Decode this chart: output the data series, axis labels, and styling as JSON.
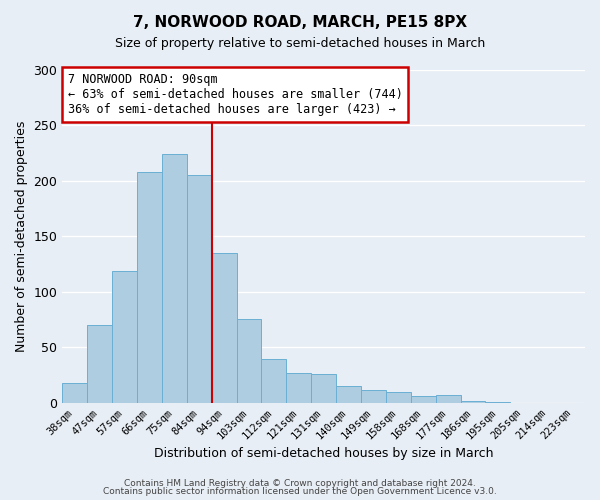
{
  "title": "7, NORWOOD ROAD, MARCH, PE15 8PX",
  "subtitle": "Size of property relative to semi-detached houses in March",
  "xlabel": "Distribution of semi-detached houses by size in March",
  "ylabel": "Number of semi-detached properties",
  "bar_labels": [
    "38sqm",
    "47sqm",
    "57sqm",
    "66sqm",
    "75sqm",
    "84sqm",
    "94sqm",
    "103sqm",
    "112sqm",
    "121sqm",
    "131sqm",
    "140sqm",
    "149sqm",
    "158sqm",
    "168sqm",
    "177sqm",
    "186sqm",
    "195sqm",
    "205sqm",
    "214sqm",
    "223sqm"
  ],
  "bar_values": [
    18,
    70,
    119,
    208,
    224,
    205,
    135,
    76,
    40,
    27,
    26,
    15,
    12,
    10,
    6,
    7,
    2,
    1,
    0,
    0,
    0
  ],
  "bar_color": "#aecde1",
  "bar_edge_color": "#6aafd4",
  "vline_x": 6.0,
  "vline_color": "#cc0000",
  "annotation_title": "7 NORWOOD ROAD: 90sqm",
  "annotation_line1": "← 63% of semi-detached houses are smaller (744)",
  "annotation_line2": "36% of semi-detached houses are larger (423) →",
  "annotation_box_color": "#ffffff",
  "annotation_box_edge": "#cc0000",
  "ylim": [
    0,
    300
  ],
  "yticks": [
    0,
    50,
    100,
    150,
    200,
    250,
    300
  ],
  "footer1": "Contains HM Land Registry data © Crown copyright and database right 2024.",
  "footer2": "Contains public sector information licensed under the Open Government Licence v3.0.",
  "background_color": "#e8eef5",
  "grid_color": "#ffffff"
}
